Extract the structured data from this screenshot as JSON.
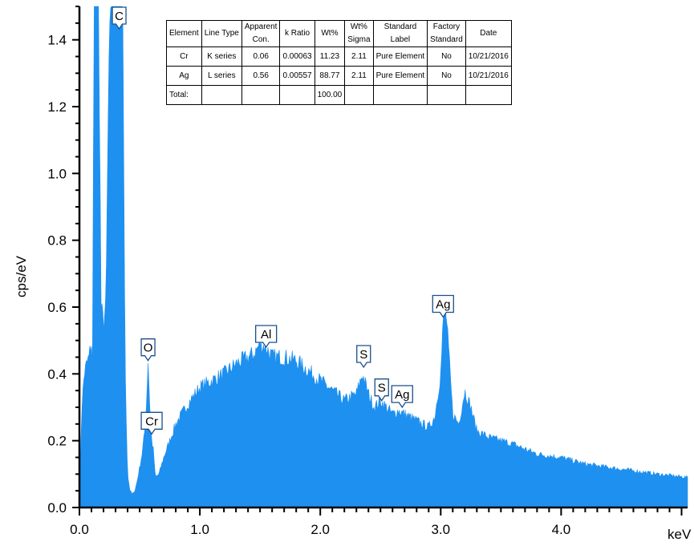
{
  "chart_data": {
    "type": "area",
    "xlabel": "keV",
    "ylabel": "cps/eV",
    "xlim": [
      0,
      5.05
    ],
    "ylim": [
      0,
      1.5
    ],
    "x_ticks": [
      "0.0",
      "1.0",
      "2.0",
      "3.0",
      "4.0"
    ],
    "y_ticks": [
      "0.0",
      "0.2",
      "0.4",
      "0.6",
      "0.8",
      "1.0",
      "1.2",
      "1.4"
    ],
    "spectrum_color": "#1e90f0",
    "spectrum": {
      "x": [
        0.0,
        0.02,
        0.04,
        0.06,
        0.08,
        0.1,
        0.11,
        0.12,
        0.14,
        0.16,
        0.18,
        0.2,
        0.22,
        0.24,
        0.26,
        0.28,
        0.3,
        0.33,
        0.36,
        0.38,
        0.4,
        0.42,
        0.44,
        0.46,
        0.48,
        0.5,
        0.52,
        0.54,
        0.555,
        0.57,
        0.585,
        0.6,
        0.615,
        0.63,
        0.66,
        0.7,
        0.75,
        0.8,
        0.85,
        0.9,
        1.0,
        1.1,
        1.2,
        1.3,
        1.4,
        1.45,
        1.5,
        1.55,
        1.6,
        1.7,
        1.8,
        1.9,
        2.0,
        2.1,
        2.2,
        2.3,
        2.35,
        2.4,
        2.45,
        2.5,
        2.55,
        2.6,
        2.65,
        2.7,
        2.8,
        2.9,
        2.95,
        3.0,
        3.02,
        3.04,
        3.06,
        3.1,
        3.15,
        3.2,
        3.25,
        3.3,
        3.4,
        3.6,
        3.8,
        4.0,
        4.2,
        4.4,
        4.6,
        4.8,
        5.05
      ],
      "y": [
        0.05,
        0.3,
        0.4,
        0.43,
        0.45,
        0.5,
        0.4,
        1.5,
        1.5,
        1.5,
        0.6,
        0.55,
        0.6,
        1.2,
        1.5,
        1.5,
        1.5,
        1.5,
        1.5,
        0.4,
        0.1,
        0.05,
        0.04,
        0.05,
        0.08,
        0.12,
        0.16,
        0.22,
        0.3,
        0.44,
        0.3,
        0.2,
        0.17,
        0.09,
        0.1,
        0.15,
        0.2,
        0.25,
        0.28,
        0.31,
        0.36,
        0.38,
        0.4,
        0.43,
        0.45,
        0.46,
        0.49,
        0.48,
        0.45,
        0.45,
        0.44,
        0.41,
        0.38,
        0.35,
        0.32,
        0.34,
        0.4,
        0.34,
        0.3,
        0.32,
        0.3,
        0.28,
        0.29,
        0.28,
        0.26,
        0.24,
        0.27,
        0.4,
        0.55,
        0.6,
        0.5,
        0.28,
        0.25,
        0.35,
        0.3,
        0.23,
        0.21,
        0.19,
        0.16,
        0.15,
        0.13,
        0.12,
        0.11,
        0.1,
        0.09
      ]
    },
    "peak_labels": [
      {
        "label": "C",
        "x": 0.33,
        "y": 1.5
      },
      {
        "label": "O",
        "x": 0.57,
        "y": 0.44
      },
      {
        "label": "Cr",
        "x": 0.6,
        "y": 0.22
      },
      {
        "label": "Al",
        "x": 1.55,
        "y": 0.48
      },
      {
        "label": "S",
        "x": 2.36,
        "y": 0.42
      },
      {
        "label": "S",
        "x": 2.51,
        "y": 0.32
      },
      {
        "label": "Ag",
        "x": 2.68,
        "y": 0.3
      },
      {
        "label": "Ag",
        "x": 3.02,
        "y": 0.57
      }
    ]
  },
  "results_table": {
    "headers": [
      [
        "Element"
      ],
      [
        "Line Type"
      ],
      [
        "Apparent",
        "Con."
      ],
      [
        "k Ratio"
      ],
      [
        "Wt%"
      ],
      [
        "Wt%",
        "Sigma"
      ],
      [
        "Standard",
        "Label"
      ],
      [
        "Factory",
        "Standard"
      ],
      [
        "Date"
      ]
    ],
    "rows": [
      [
        "Cr",
        "K series",
        "0.06",
        "0.00063",
        "11.23",
        "2.11",
        "Pure Element",
        "No",
        "10/21/2016"
      ],
      [
        "Ag",
        "L series",
        "0.56",
        "0.00557",
        "88.77",
        "2.11",
        "Pure Element",
        "No",
        "10/21/2016"
      ],
      [
        "Total:",
        "",
        "",
        "",
        "100.00",
        "",
        "",
        "",
        ""
      ]
    ]
  }
}
